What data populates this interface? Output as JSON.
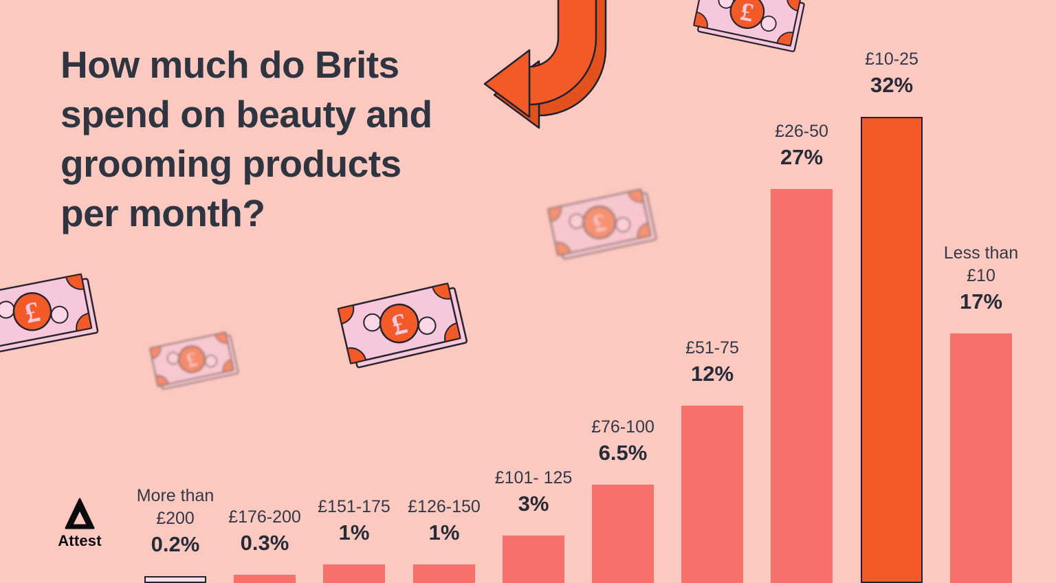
{
  "page": {
    "title_lines": [
      "How much do Brits",
      "spend on beauty and",
      "grooming products",
      "per month?"
    ]
  },
  "brand": {
    "logo_text": "Attest",
    "logo_icon": "attest-triangle-icon"
  },
  "decor": {
    "pound_symbol": "£",
    "icons": [
      "pound-note-icon",
      "curved-arrow-icon",
      "attest-triangle-icon"
    ]
  },
  "colors": {
    "background": "#FBC9C0",
    "bar": "#F5716A",
    "highlight": "#F25B27",
    "outlined_bar_fill": "#F7DCE7",
    "outline_dark": "#23222E",
    "text_dark": "#2E3440",
    "note_pink": "#F7C7DC"
  },
  "chart_data": {
    "type": "bar",
    "title": "How much do Brits spend on beauty and grooming products per month?",
    "categories": [
      [
        "More than",
        "£200"
      ],
      [
        "£176-200"
      ],
      [
        "£151-175"
      ],
      [
        "£126-150"
      ],
      [
        "£101- 125"
      ],
      [
        "£76-100"
      ],
      [
        "£51-75"
      ],
      [
        "£26-50"
      ],
      [
        "£10-25"
      ],
      [
        "Less than",
        "£10"
      ]
    ],
    "values": [
      0.2,
      0.3,
      1,
      1,
      3,
      6.5,
      12,
      27,
      32,
      17
    ],
    "value_labels": [
      "0.2%",
      "0.3%",
      "1%",
      "1%",
      "3%",
      "6.5%",
      "12%",
      "27%",
      "32%",
      "17%"
    ],
    "unit": "%",
    "highlight_index": 8,
    "outlined_index": 0,
    "xlabel": "",
    "ylabel": "",
    "ylim": [
      0,
      35
    ],
    "grid": false,
    "legend": "none",
    "axes_hidden": true
  }
}
